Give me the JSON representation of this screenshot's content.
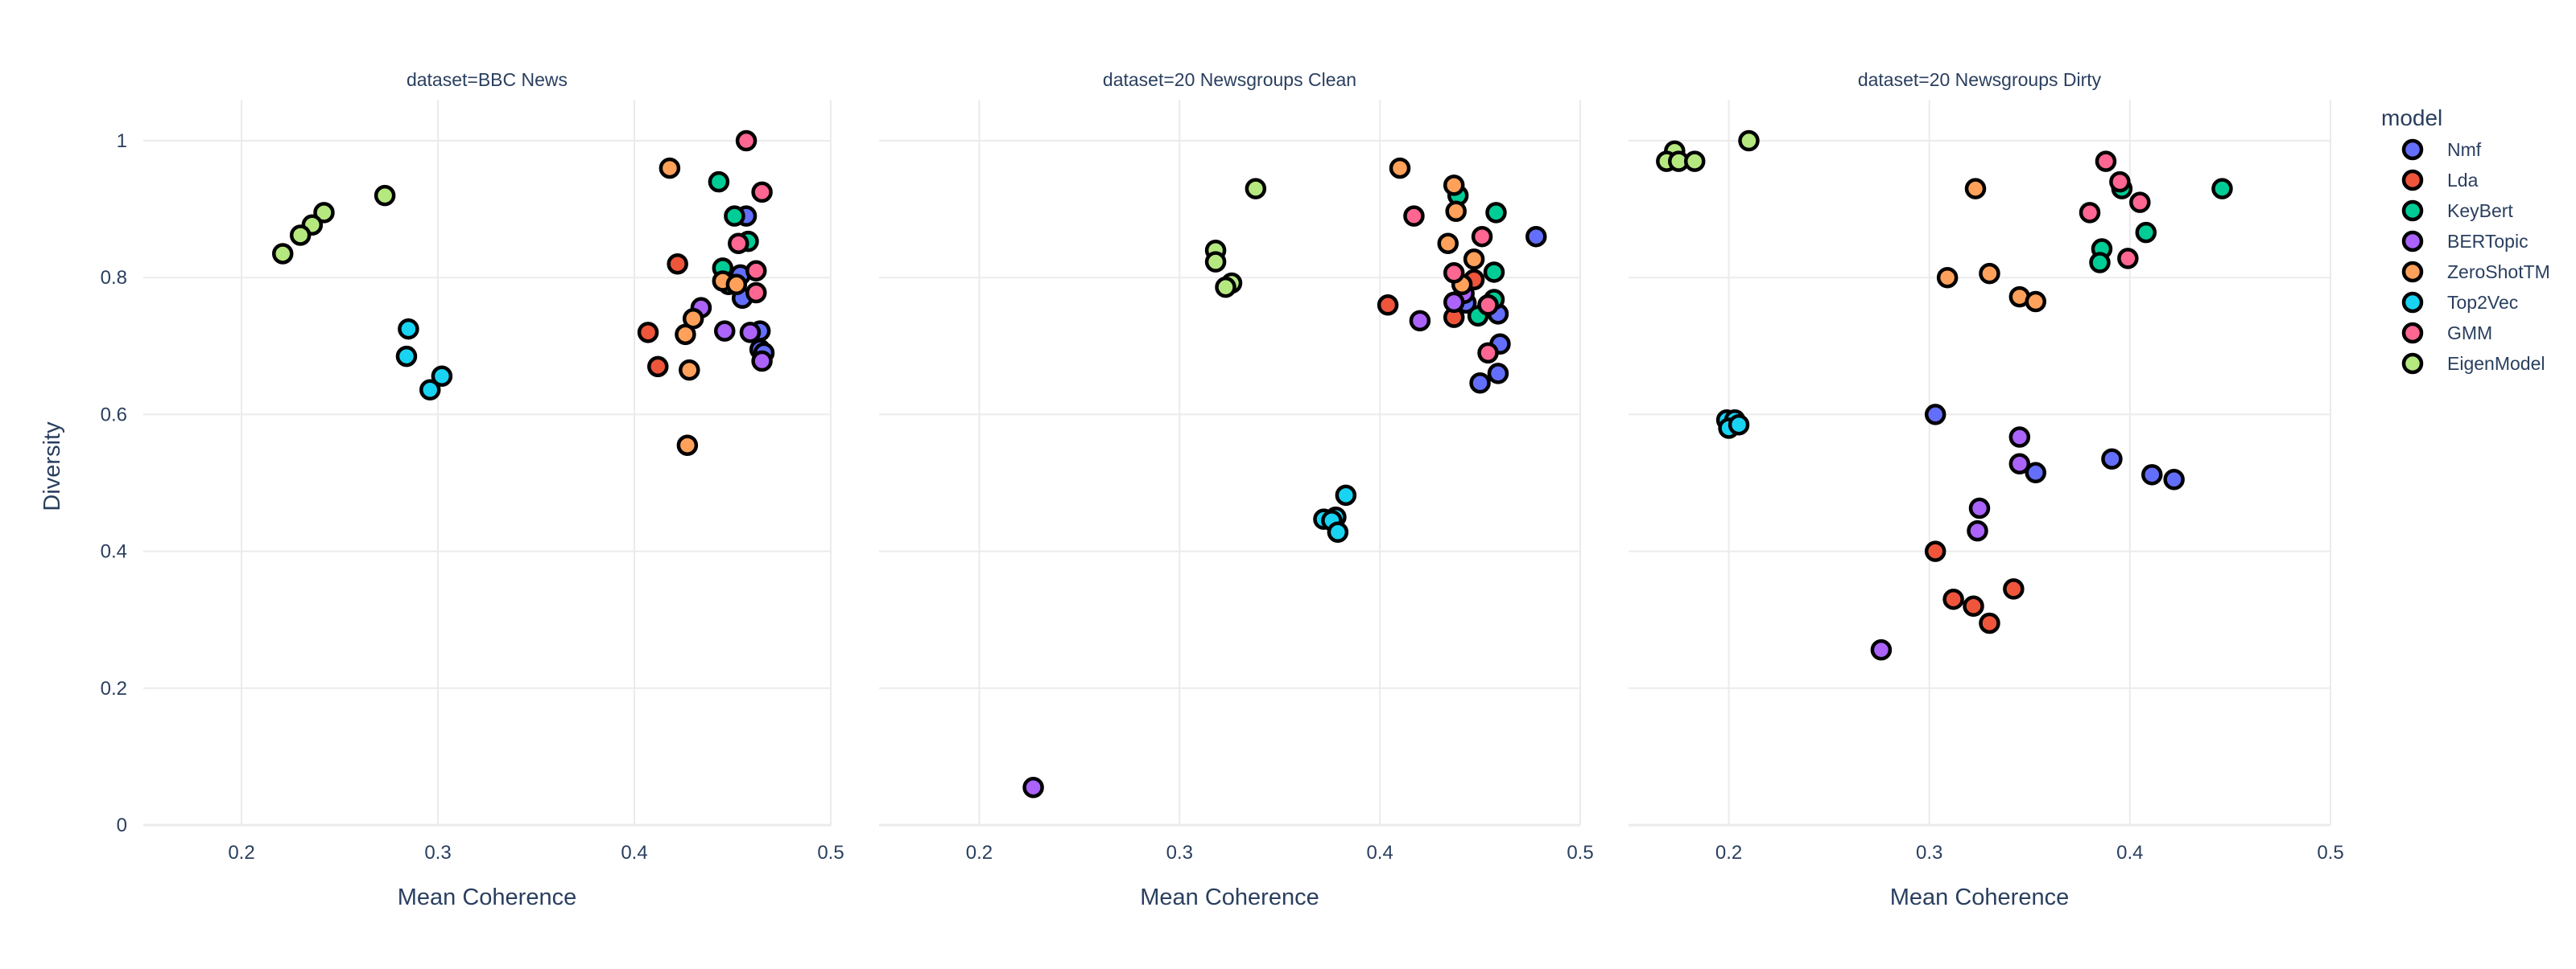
{
  "chart_data": {
    "type": "scatter",
    "xlabel": "Mean Coherence",
    "ylabel": "Diversity",
    "xlim": [
      0.15,
      0.5
    ],
    "ylim": [
      0,
      1.06
    ],
    "xticks": [
      0.2,
      0.3,
      0.4,
      0.5
    ],
    "xtick_labels": [
      "0.2",
      "0.3",
      "0.4",
      "0.5"
    ],
    "yticks": [
      0,
      0.2,
      0.4,
      0.6,
      0.8,
      1
    ],
    "ytick_labels": [
      "0",
      "0.2",
      "0.4",
      "0.6",
      "0.8",
      "1"
    ],
    "grid": true,
    "legend": {
      "title": "model",
      "placement": "right",
      "entries": [
        {
          "name": "Nmf",
          "color": "#636efa"
        },
        {
          "name": "Lda",
          "color": "#ef553b"
        },
        {
          "name": "KeyBert",
          "color": "#00cc96"
        },
        {
          "name": "BERTopic",
          "color": "#ab63fa"
        },
        {
          "name": "ZeroShotTM",
          "color": "#ffa15a"
        },
        {
          "name": "Top2Vec",
          "color": "#19d3f3"
        },
        {
          "name": "GMM",
          "color": "#ff6692"
        },
        {
          "name": "EigenModel",
          "color": "#b6e880"
        }
      ]
    },
    "panels": [
      {
        "title": "dataset=BBC News",
        "series": [
          {
            "name": "Nmf",
            "points": [
              [
                0.457,
                0.89
              ],
              [
                0.454,
                0.804
              ],
              [
                0.455,
                0.77
              ],
              [
                0.464,
                0.722
              ],
              [
                0.464,
                0.695
              ],
              [
                0.466,
                0.69
              ]
            ]
          },
          {
            "name": "Lda",
            "points": [
              [
                0.422,
                0.82
              ],
              [
                0.407,
                0.72
              ],
              [
                0.412,
                0.67
              ]
            ]
          },
          {
            "name": "KeyBert",
            "points": [
              [
                0.443,
                0.94
              ],
              [
                0.451,
                0.89
              ],
              [
                0.458,
                0.853
              ],
              [
                0.445,
                0.814
              ],
              [
                0.448,
                0.79
              ]
            ]
          },
          {
            "name": "BERTopic",
            "points": [
              [
                0.434,
                0.756
              ],
              [
                0.446,
                0.722
              ],
              [
                0.459,
                0.72
              ],
              [
                0.465,
                0.678
              ]
            ]
          },
          {
            "name": "ZeroShotTM",
            "points": [
              [
                0.418,
                0.96
              ],
              [
                0.445,
                0.795
              ],
              [
                0.452,
                0.79
              ],
              [
                0.43,
                0.74
              ],
              [
                0.426,
                0.717
              ],
              [
                0.428,
                0.665
              ],
              [
                0.427,
                0.555
              ]
            ]
          },
          {
            "name": "Top2Vec",
            "points": [
              [
                0.285,
                0.725
              ],
              [
                0.284,
                0.685
              ],
              [
                0.302,
                0.656
              ],
              [
                0.296,
                0.636
              ]
            ]
          },
          {
            "name": "GMM",
            "points": [
              [
                0.457,
                1.0
              ],
              [
                0.465,
                0.925
              ],
              [
                0.453,
                0.85
              ],
              [
                0.462,
                0.81
              ],
              [
                0.462,
                0.778
              ]
            ]
          },
          {
            "name": "EigenModel",
            "points": [
              [
                0.273,
                0.92
              ],
              [
                0.242,
                0.895
              ],
              [
                0.236,
                0.877
              ],
              [
                0.23,
                0.862
              ],
              [
                0.221,
                0.835
              ]
            ]
          }
        ]
      },
      {
        "title": "dataset=20 Newsgroups Clean",
        "series": [
          {
            "name": "Nmf",
            "points": [
              [
                0.478,
                0.86
              ],
              [
                0.459,
                0.747
              ],
              [
                0.443,
                0.763
              ],
              [
                0.46,
                0.703
              ],
              [
                0.459,
                0.66
              ],
              [
                0.45,
                0.646
              ]
            ]
          },
          {
            "name": "Lda",
            "points": [
              [
                0.404,
                0.76
              ],
              [
                0.447,
                0.797
              ],
              [
                0.437,
                0.742
              ]
            ]
          },
          {
            "name": "KeyBert",
            "points": [
              [
                0.458,
                0.895
              ],
              [
                0.439,
                0.92
              ],
              [
                0.457,
                0.808
              ],
              [
                0.457,
                0.768
              ],
              [
                0.449,
                0.744
              ]
            ]
          },
          {
            "name": "BERTopic",
            "points": [
              [
                0.42,
                0.737
              ],
              [
                0.442,
                0.777
              ],
              [
                0.437,
                0.764
              ],
              [
                0.227,
                0.055
              ]
            ]
          },
          {
            "name": "ZeroShotTM",
            "points": [
              [
                0.41,
                0.96
              ],
              [
                0.437,
                0.935
              ],
              [
                0.438,
                0.897
              ],
              [
                0.434,
                0.85
              ],
              [
                0.447,
                0.827
              ],
              [
                0.441,
                0.79
              ],
              [
                0.454,
                0.76
              ]
            ]
          },
          {
            "name": "Top2Vec",
            "points": [
              [
                0.383,
                0.482
              ],
              [
                0.372,
                0.447
              ],
              [
                0.378,
                0.45
              ],
              [
                0.376,
                0.445
              ],
              [
                0.379,
                0.428
              ]
            ]
          },
          {
            "name": "GMM",
            "points": [
              [
                0.417,
                0.89
              ],
              [
                0.451,
                0.86
              ],
              [
                0.437,
                0.807
              ],
              [
                0.454,
                0.76
              ],
              [
                0.454,
                0.69
              ]
            ]
          },
          {
            "name": "EigenModel",
            "points": [
              [
                0.338,
                0.93
              ],
              [
                0.318,
                0.84
              ],
              [
                0.318,
                0.823
              ],
              [
                0.326,
                0.792
              ],
              [
                0.323,
                0.786
              ]
            ]
          }
        ]
      },
      {
        "title": "dataset=20 Newsgroups Dirty",
        "series": [
          {
            "name": "Nmf",
            "points": [
              [
                0.303,
                0.6
              ],
              [
                0.391,
                0.535
              ],
              [
                0.353,
                0.515
              ],
              [
                0.411,
                0.512
              ],
              [
                0.422,
                0.505
              ]
            ]
          },
          {
            "name": "Lda",
            "points": [
              [
                0.303,
                0.4
              ],
              [
                0.342,
                0.345
              ],
              [
                0.312,
                0.33
              ],
              [
                0.322,
                0.32
              ],
              [
                0.33,
                0.295
              ]
            ]
          },
          {
            "name": "KeyBert",
            "points": [
              [
                0.446,
                0.93
              ],
              [
                0.396,
                0.93
              ],
              [
                0.408,
                0.866
              ],
              [
                0.386,
                0.842
              ],
              [
                0.385,
                0.822
              ]
            ]
          },
          {
            "name": "BERTopic",
            "points": [
              [
                0.345,
                0.567
              ],
              [
                0.345,
                0.528
              ],
              [
                0.325,
                0.463
              ],
              [
                0.324,
                0.43
              ],
              [
                0.276,
                0.256
              ]
            ]
          },
          {
            "name": "ZeroShotTM",
            "points": [
              [
                0.323,
                0.93
              ],
              [
                0.33,
                0.806
              ],
              [
                0.309,
                0.8
              ],
              [
                0.345,
                0.772
              ],
              [
                0.353,
                0.765
              ]
            ]
          },
          {
            "name": "Top2Vec",
            "points": [
              [
                0.199,
                0.592
              ],
              [
                0.203,
                0.592
              ],
              [
                0.2,
                0.58
              ],
              [
                0.205,
                0.585
              ]
            ]
          },
          {
            "name": "GMM",
            "points": [
              [
                0.388,
                0.97
              ],
              [
                0.395,
                0.94
              ],
              [
                0.405,
                0.91
              ],
              [
                0.38,
                0.895
              ],
              [
                0.399,
                0.828
              ]
            ]
          },
          {
            "name": "EigenModel",
            "points": [
              [
                0.21,
                1.0
              ],
              [
                0.173,
                0.985
              ],
              [
                0.169,
                0.97
              ],
              [
                0.175,
                0.97
              ],
              [
                0.183,
                0.97
              ]
            ]
          }
        ]
      }
    ]
  }
}
